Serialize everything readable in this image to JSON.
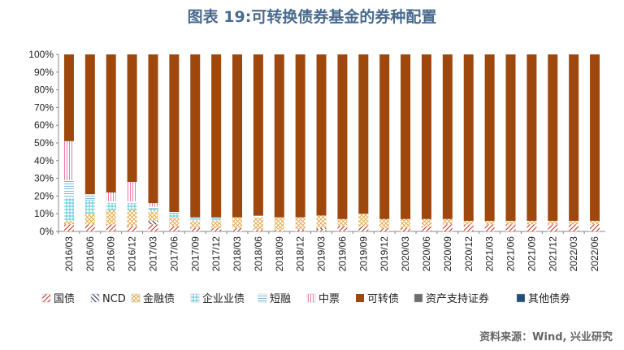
{
  "header": {
    "title": "图表 19:可转换债券基金的券种配置",
    "source": "资料来源：Wind, 兴业研究"
  },
  "colors": {
    "国债": "#c0392b",
    "NCD": "#1f3864",
    "金融债": "#e8a33c",
    "企业业债": "#4bc4d4",
    "短融": "#7fb7d6",
    "中票": "#e57aa8",
    "可转债": "#9e480e",
    "资产支持证券": "#6d6d6d",
    "其他债券": "#1f4e79"
  },
  "chart_data": {
    "type": "bar",
    "stacked": true,
    "title": "图表 19:可转换债券基金的券种配置",
    "xlabel": "",
    "ylabel": "",
    "ylim": [
      0,
      100
    ],
    "yticks": [
      "0%",
      "10%",
      "20%",
      "30%",
      "40%",
      "50%",
      "60%",
      "70%",
      "80%",
      "90%",
      "100%"
    ],
    "categories": [
      "2016/03",
      "2016/06",
      "2016/09",
      "2016/12",
      "2017/03",
      "2017/06",
      "2017/09",
      "2017/12",
      "2018/03",
      "2018/06",
      "2018/09",
      "2018/12",
      "2019/03",
      "2019/06",
      "2019/09",
      "2019/12",
      "2020/03",
      "2020/06",
      "2020/09",
      "2020/12",
      "2021/03",
      "2021/06",
      "2021/09",
      "2021/12",
      "2022/03",
      "2022/06"
    ],
    "legend_position": "bottom",
    "series": [
      {
        "name": "国债",
        "values": [
          4,
          4,
          4,
          3,
          4,
          3,
          2,
          2,
          2,
          1,
          1,
          1,
          1,
          3,
          3,
          2,
          2,
          3,
          4,
          4,
          4,
          4,
          4,
          4,
          4,
          4
        ]
      },
      {
        "name": "NCD",
        "values": [
          0,
          0,
          0,
          0,
          2,
          0,
          0,
          0,
          0,
          0,
          0,
          0,
          1,
          0,
          0,
          0,
          0,
          0,
          0,
          0,
          0,
          0,
          0,
          0,
          0,
          0
        ]
      },
      {
        "name": "金融债",
        "values": [
          2,
          6,
          8,
          9,
          5,
          5,
          4,
          4,
          6,
          7,
          7,
          7,
          7,
          4,
          7,
          5,
          5,
          4,
          3,
          2,
          2,
          2,
          2,
          2,
          2,
          2
        ]
      },
      {
        "name": "企业业债",
        "values": [
          13,
          8,
          4,
          4,
          2,
          2,
          1,
          1,
          0,
          0,
          0,
          0,
          0,
          0,
          0,
          0,
          0,
          0,
          0,
          0,
          0,
          0,
          0,
          0,
          0,
          0
        ]
      },
      {
        "name": "短融",
        "values": [
          10,
          3,
          1,
          1,
          1,
          1,
          1,
          1,
          0,
          1,
          0,
          0,
          0,
          0,
          0,
          0,
          0,
          0,
          0,
          0,
          0,
          0,
          0,
          0,
          0,
          0
        ]
      },
      {
        "name": "中票",
        "values": [
          22,
          0,
          5,
          11,
          2,
          0,
          0,
          0,
          0,
          0,
          0,
          0,
          0,
          0,
          0,
          0,
          0,
          0,
          0,
          0,
          0,
          0,
          0,
          0,
          0,
          0
        ]
      },
      {
        "name": "可转债",
        "values": [
          49,
          79,
          78,
          72,
          84,
          89,
          92,
          92,
          92,
          91,
          92,
          92,
          91,
          93,
          90,
          93,
          93,
          93,
          93,
          94,
          94,
          94,
          94,
          94,
          94,
          94
        ]
      },
      {
        "name": "资产支持证券",
        "values": [
          0,
          0,
          0,
          0,
          0,
          0,
          0,
          0,
          0,
          0,
          0,
          0,
          0,
          0,
          0,
          0,
          0,
          0,
          0,
          0,
          0,
          0,
          0,
          0,
          0,
          0
        ]
      },
      {
        "name": "其他债券",
        "values": [
          0,
          0,
          0,
          0,
          0,
          0,
          0,
          0,
          0,
          0,
          0,
          0,
          0,
          0,
          0,
          0,
          0,
          0,
          0,
          0,
          0,
          0,
          0,
          0,
          0,
          0
        ]
      }
    ],
    "legend": [
      "国债",
      "NCD",
      "金融债",
      "企业业债",
      "短融",
      "中票",
      "可转债",
      "资产支持证券",
      "其他债券"
    ]
  }
}
